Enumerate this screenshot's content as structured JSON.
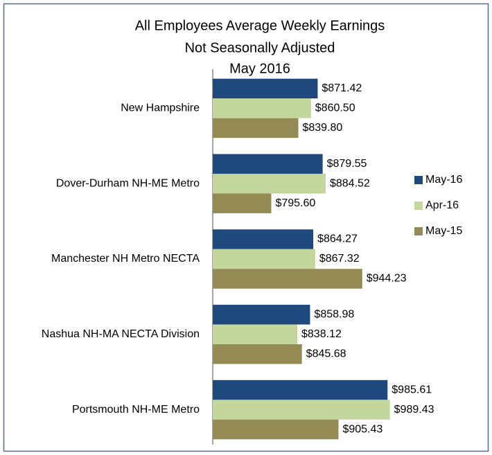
{
  "chart_data": {
    "type": "hbar",
    "title": "All Employees Average Weekly Earnings",
    "subtitle": [
      "Not Seasonally Adjusted",
      "May 2016"
    ],
    "categories": [
      "New Hampshire",
      "Dover-Durham NH-ME Metro",
      "Manchester NH Metro NECTA",
      "Nashua NH-MA NECTA Division",
      "Portsmouth NH-ME Metro"
    ],
    "series": [
      {
        "name": "May-16",
        "color": "#1f497d",
        "values": [
          871.42,
          879.55,
          864.27,
          858.98,
          985.61
        ],
        "value_labels": [
          "$871.42",
          "$879.55",
          "$864.27",
          "$858.98",
          "$985.61"
        ]
      },
      {
        "name": "Apr-16",
        "color": "#c3d69b",
        "values": [
          860.5,
          884.52,
          867.32,
          838.12,
          989.43
        ],
        "value_labels": [
          "$860.50",
          "$884.52",
          "$867.32",
          "$838.12",
          "$989.43"
        ]
      },
      {
        "name": "May-15",
        "color": "#948a54",
        "values": [
          839.8,
          795.6,
          944.23,
          845.68,
          905.43
        ],
        "value_labels": [
          "$839.80",
          "$795.60",
          "$944.23",
          "$845.68",
          "$905.43"
        ]
      }
    ],
    "xlim": [
      700,
      1000
    ],
    "legend": "right"
  }
}
